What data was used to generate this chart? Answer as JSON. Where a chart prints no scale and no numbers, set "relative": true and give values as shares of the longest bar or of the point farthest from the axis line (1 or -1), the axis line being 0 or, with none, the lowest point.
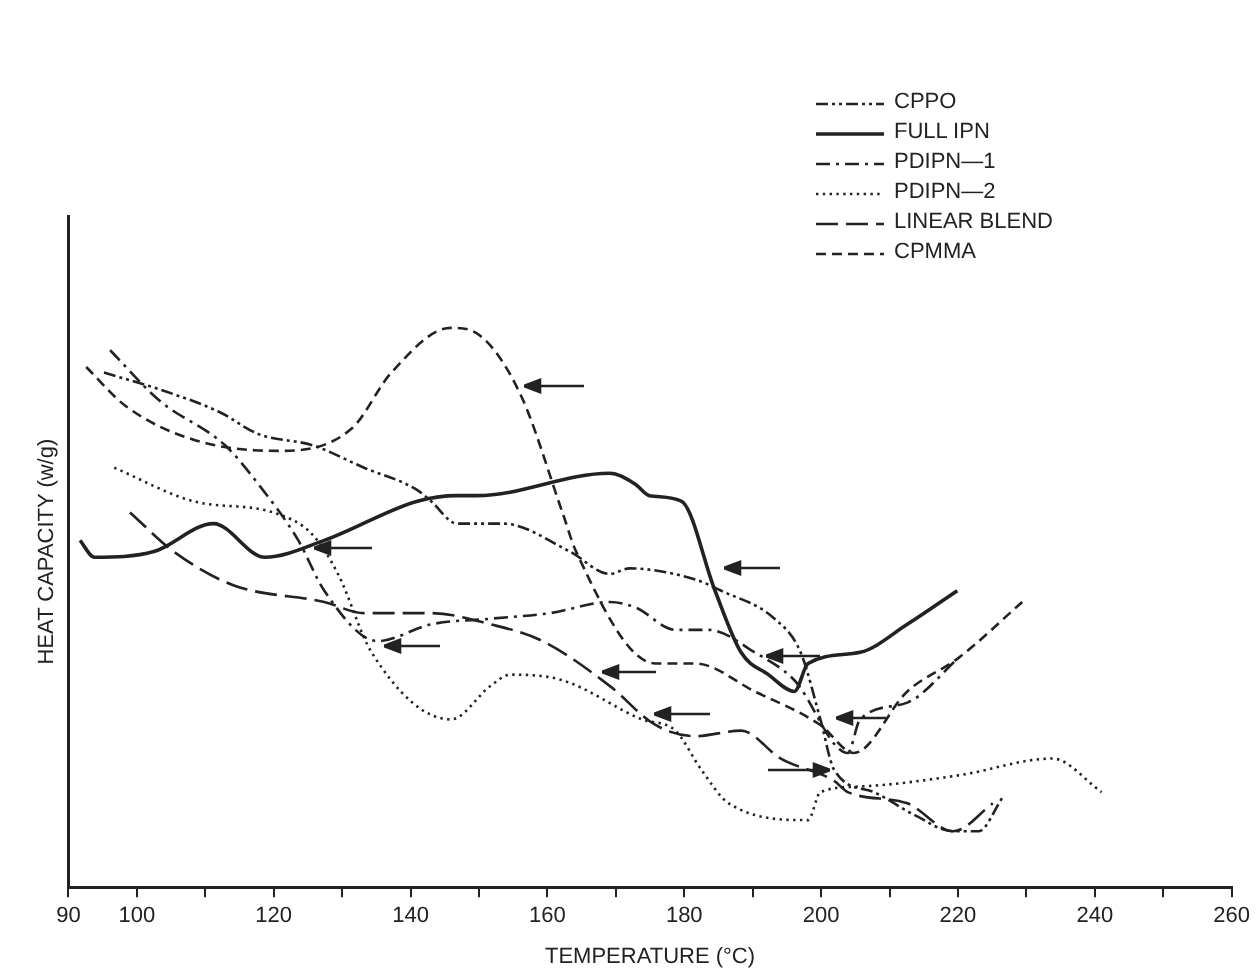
{
  "chart_data": {
    "type": "line",
    "relative": true,
    "xlabel": "TEMPERATURE (°C)",
    "ylabel": "HEAT CAPACITY (w/g)",
    "xlim": [
      90,
      260
    ],
    "xticks": [
      90,
      100,
      {
        "value": 110,
        "label": null
      },
      120,
      {
        "value": 130,
        "label": null
      },
      140,
      {
        "value": 150,
        "label": null
      },
      160,
      {
        "value": 170,
        "label": null
      },
      180,
      {
        "value": 190,
        "label": null
      },
      200,
      {
        "value": 210,
        "label": null
      },
      220,
      {
        "value": 230,
        "label": null
      },
      240,
      {
        "value": 250,
        "label": null
      },
      260
    ],
    "legend": "top right",
    "grid": false,
    "marker": "none",
    "series": [
      {
        "name": "CPPO",
        "color": "#222222",
        "line_style": "dashdotdot",
        "x": [
          95.2,
          103.3,
          112.0,
          117.8,
          125.7,
          133.2,
          141.0,
          143.0,
          146.8,
          150.6,
          153.5,
          163.3,
          169.1,
          172.0,
          181.6,
          185.4,
          193.2,
          197.0,
          199.9,
          201.9,
          207.7,
          213.5,
          219.3,
          223.0,
          226.5
        ],
        "values": [
          0.92,
          0.89,
          0.85,
          0.81,
          0.79,
          0.75,
          0.71,
          0.69,
          0.65,
          0.65,
          0.65,
          0.6,
          0.56,
          0.57,
          0.55,
          0.53,
          0.48,
          0.42,
          0.3,
          0.21,
          0.17,
          0.13,
          0.1,
          0.1,
          0.16
        ]
      },
      {
        "name": "FULL IPN",
        "color": "#222222",
        "line_style": "solid",
        "x": [
          91.7,
          93.8,
          102.5,
          111.2,
          118.7,
          127.4,
          141.0,
          146.8,
          149.7,
          169.1,
          172.9,
          174.9,
          179.6,
          184.5,
          188.3,
          192.3,
          196.1,
          198.1,
          205.7,
          212.6,
          219.9
        ],
        "values": [
          0.62,
          0.59,
          0.6,
          0.65,
          0.59,
          0.62,
          0.69,
          0.7,
          0.7,
          0.74,
          0.72,
          0.7,
          0.69,
          0.53,
          0.42,
          0.38,
          0.35,
          0.4,
          0.42,
          0.47,
          0.53
        ]
      },
      {
        "name": "PDIPN—1",
        "color": "#222222",
        "line_style": "dashdot",
        "x": [
          96.1,
          103.3,
          112.9,
          117.8,
          123.6,
          127.4,
          135.2,
          143.0,
          151.7,
          160.4,
          169.1,
          172.9,
          178.7,
          183.6,
          190.3,
          196.1,
          203.9,
          205.7,
          212.6,
          220.1
        ],
        "values": [
          0.96,
          0.87,
          0.79,
          0.72,
          0.62,
          0.53,
          0.44,
          0.47,
          0.48,
          0.49,
          0.51,
          0.5,
          0.46,
          0.46,
          0.42,
          0.37,
          0.24,
          0.3,
          0.33,
          0.41
        ]
      },
      {
        "name": "PDIPN—2",
        "color": "#222222",
        "line_style": "dotted",
        "x": [
          96.7,
          108.3,
          119.9,
          125.7,
          129.4,
          134.3,
          145.9,
          151.7,
          154.6,
          162.2,
          173.8,
          178.7,
          182.5,
          186.5,
          198.1,
          199.9,
          205.7,
          220.1,
          233.8,
          241.0
        ],
        "values": [
          0.75,
          0.69,
          0.67,
          0.63,
          0.56,
          0.42,
          0.3,
          0.36,
          0.38,
          0.37,
          0.3,
          0.28,
          0.21,
          0.15,
          0.12,
          0.17,
          0.18,
          0.2,
          0.23,
          0.17
        ]
      },
      {
        "name": "LINEAR BLEND",
        "color": "#222222",
        "line_style": "longdashed",
        "x": [
          99.0,
          105.4,
          114.1,
          127.4,
          133.2,
          143.0,
          151.7,
          159.3,
          169.1,
          175.8,
          181.6,
          188.3,
          194.1,
          201.9,
          203.9,
          212.6,
          219.3,
          225.1
        ],
        "values": [
          0.67,
          0.6,
          0.54,
          0.51,
          0.49,
          0.49,
          0.47,
          0.44,
          0.36,
          0.29,
          0.27,
          0.28,
          0.23,
          0.19,
          0.17,
          0.15,
          0.1,
          0.15
        ]
      },
      {
        "name": "CPMMA",
        "color": "#222222",
        "line_style": "dashed",
        "x": [
          92.6,
          98.4,
          108.3,
          120.7,
          131.4,
          137.2,
          145.9,
          149.7,
          156.1,
          162.2,
          164.2,
          175.8,
          181.6,
          190.3,
          199.9,
          204.8,
          212.6,
          220.1,
          229.4
        ],
        "values": [
          0.93,
          0.86,
          0.8,
          0.78,
          0.82,
          0.92,
          1,
          0.99,
          0.88,
          0.67,
          0.6,
          0.4,
          0.4,
          0.35,
          0.29,
          0.24,
          0.35,
          0.41,
          0.51
        ]
      }
    ]
  }
}
